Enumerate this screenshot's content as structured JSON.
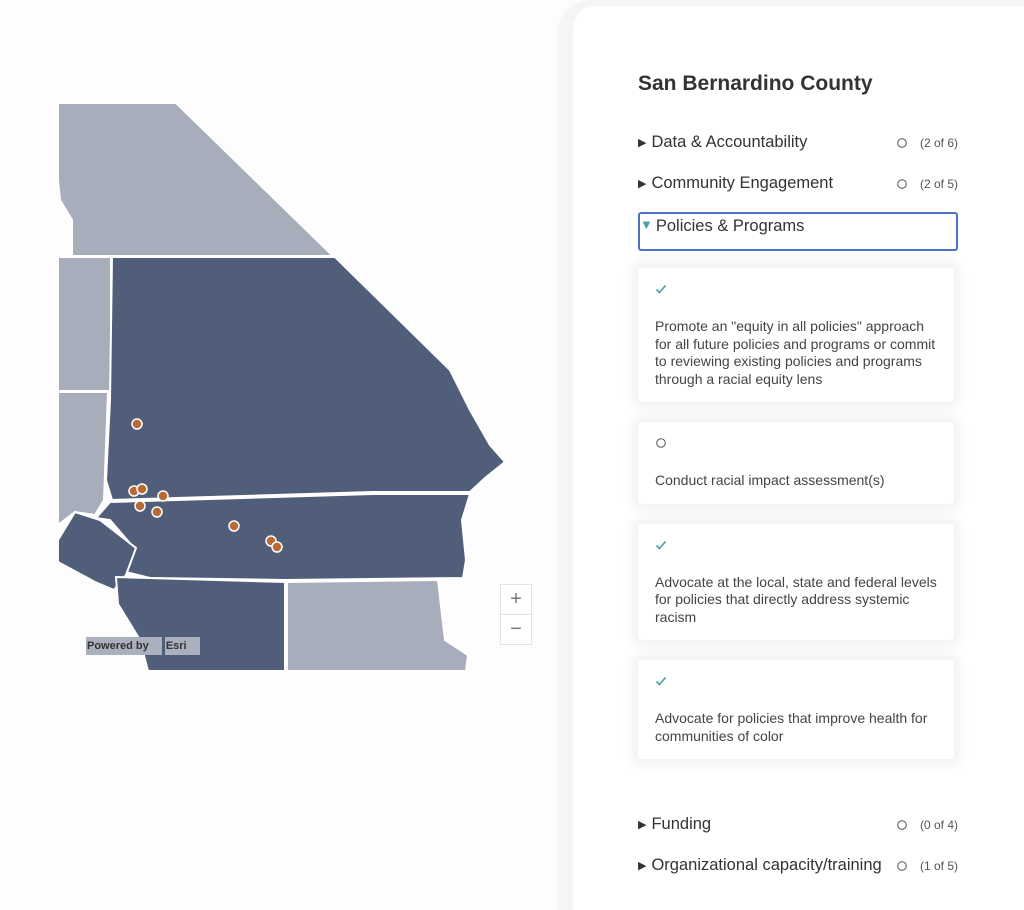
{
  "map": {
    "attribution": "Powered by",
    "attribution_brand": "Esri",
    "zoom_in": "+",
    "zoom_out": "−"
  },
  "panel": {
    "title": "San Bernardino County",
    "sections": [
      {
        "label": "Data & Accountability",
        "done": false,
        "count": "(2 of 6)"
      },
      {
        "label": "Community Engagement",
        "done": false,
        "count": "(2 of 5)"
      },
      {
        "label": "Policies & Programs",
        "expanded": true,
        "items": [
          {
            "done": true,
            "text": "Promote an \"equity in all policies\" approach for all future policies and programs or commit to reviewing existing policies and programs through a racial equity lens"
          },
          {
            "done": false,
            "text": "Conduct racial impact assessment(s)"
          },
          {
            "done": true,
            "text": "Advocate at the local, state and federal levels for policies that directly address systemic racism"
          },
          {
            "done": true,
            "text": "Advocate for policies that improve health for communities of color"
          }
        ]
      },
      {
        "label": "Funding",
        "done": false,
        "count": "(0 of 4)"
      },
      {
        "label": "Organizational capacity/training",
        "done": false,
        "count": "(1 of 5)"
      }
    ]
  }
}
